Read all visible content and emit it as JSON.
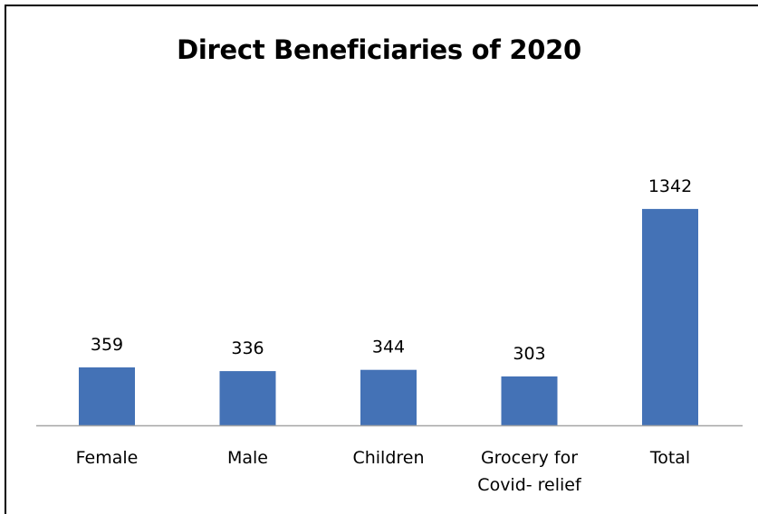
{
  "chart_data": {
    "type": "bar",
    "title": "Direct Beneficiaries of 2020",
    "categories": [
      [
        "Female"
      ],
      [
        "Male"
      ],
      [
        "Children"
      ],
      [
        "Grocery for",
        "Covid- relief"
      ],
      [
        "Total"
      ]
    ],
    "values": [
      359,
      336,
      344,
      303,
      1342
    ],
    "xlabel": "",
    "ylabel": "",
    "ylim": [
      0,
      1600
    ],
    "grid": false,
    "legend": "none",
    "colors": {
      "bar": "#4472B6",
      "axis": "#A6A6A6",
      "text": "#000000",
      "frame": "#000000"
    }
  }
}
